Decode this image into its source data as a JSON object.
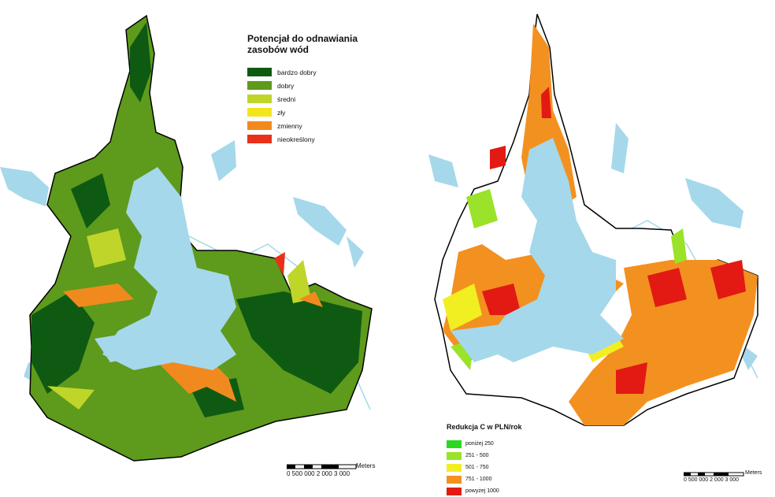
{
  "left_map": {
    "legend": {
      "title": "Potencjał do odnawiania\nzasobów wód",
      "items": [
        {
          "label": "bardzo dobry",
          "color": "#0f5a12"
        },
        {
          "label": "dobry",
          "color": "#5e9a1c"
        },
        {
          "label": "średni",
          "color": "#bfd52a"
        },
        {
          "label": "zły",
          "color": "#f3e51c"
        },
        {
          "label": "zmienny",
          "color": "#f18a1e"
        },
        {
          "label": "nieokreślony",
          "color": "#e8301a"
        }
      ]
    },
    "scalebar": {
      "ticks": "0  500 000   2 000   3 000",
      "unit": "Meters"
    }
  },
  "right_map": {
    "legend": {
      "title": "Redukcja C w PLN/rok",
      "items": [
        {
          "label": "poniżej 250",
          "color": "#2bd81e"
        },
        {
          "label": "251 - 500",
          "color": "#9be22a"
        },
        {
          "label": "501 - 750",
          "color": "#f1ef21"
        },
        {
          "label": "751 - 1000",
          "color": "#f39120"
        },
        {
          "label": "powyżej 1000",
          "color": "#e21a13"
        }
      ]
    },
    "scalebar": {
      "ticks": "0  500 000   2 000   3 000",
      "unit": "Meters"
    }
  },
  "colors": {
    "water": "#a5d8ea",
    "boundary": "#000000"
  }
}
